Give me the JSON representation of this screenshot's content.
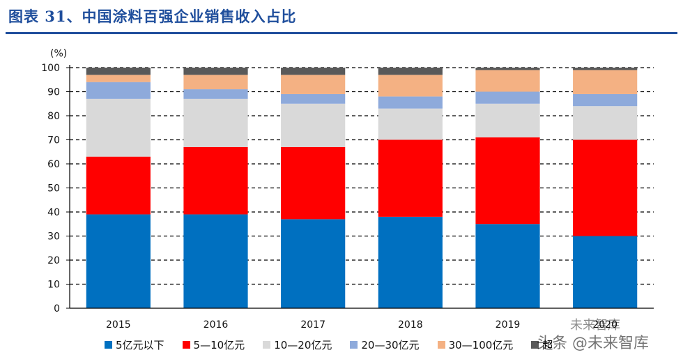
{
  "figure_title": "图表 31、中国涂料百强企业销售收入占比",
  "chart_data": {
    "type": "bar",
    "stacked": true,
    "unit_label": "(%)",
    "categories": [
      "2015",
      "2016",
      "2017",
      "2018",
      "2019",
      "2020"
    ],
    "ylim": [
      0,
      100
    ],
    "yticks": [
      0,
      10,
      20,
      30,
      40,
      50,
      60,
      70,
      80,
      90,
      100
    ],
    "grid": "dashed horizontal",
    "legend_position": "bottom",
    "series": [
      {
        "name": "5亿元以下",
        "color": "#0070c0",
        "values": [
          39,
          39,
          37,
          38,
          35,
          30
        ]
      },
      {
        "name": "5—10亿元",
        "color": "#ff0000",
        "values": [
          24,
          28,
          30,
          32,
          36,
          40
        ]
      },
      {
        "name": "10—20亿元",
        "color": "#d9d9d9",
        "values": [
          24,
          20,
          18,
          13,
          14,
          14
        ]
      },
      {
        "name": "20—30亿元",
        "color": "#8eaadb",
        "values": [
          7,
          4,
          4,
          5,
          5,
          5
        ]
      },
      {
        "name": "30—100亿元",
        "color": "#f4b183",
        "values": [
          3,
          6,
          8,
          9,
          9,
          10
        ]
      },
      {
        "name": "超",
        "color": "#595959",
        "values": [
          3,
          3,
          3,
          3,
          1,
          1
        ]
      }
    ]
  },
  "watermark": {
    "line1": "未来智库",
    "line2": "头条 @未来智库"
  }
}
